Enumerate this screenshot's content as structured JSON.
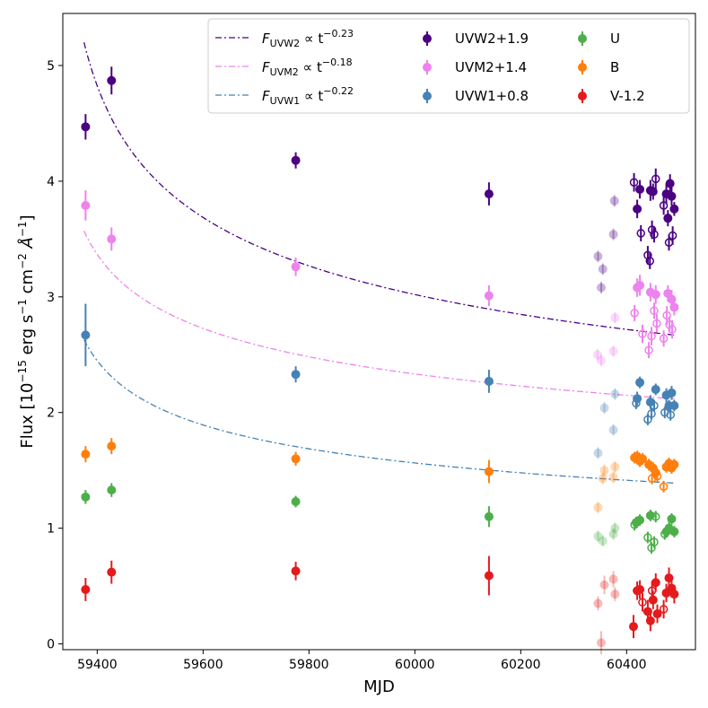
{
  "chart_data": {
    "type": "scatter",
    "xlabel": "MJD",
    "ylabel_main": "Flux [10",
    "ylabel_exp1": "−15",
    "ylabel_rest": " erg s",
    "ylabel_exp2": "−1",
    "ylabel_cm": " cm",
    "ylabel_exp3": "−2",
    "ylabel_ang": " Å",
    "ylabel_exp4": "−1",
    "ylabel_close": "]",
    "xlim": [
      59335,
      60530
    ],
    "ylim": [
      -0.05,
      5.45
    ],
    "xticks": [
      59400,
      59600,
      59800,
      60000,
      60200,
      60400
    ],
    "yticks": [
      0,
      1,
      2,
      3,
      4,
      5
    ],
    "grid": false,
    "legend_position": "top-right",
    "fits": [
      {
        "name": "F_UVW2",
        "sub": "UVW2",
        "exp": "−0.23",
        "label_prefix": "F",
        "propto": " ∝ t",
        "color": "#4b0082",
        "amp": 5.2,
        "index": 0.23,
        "x_start": 59375,
        "x_end": 60490
      },
      {
        "name": "F_UVM2",
        "sub": "UVM2",
        "exp": "−0.18",
        "label_prefix": "F",
        "propto": " ∝ t",
        "color": "#ee82ee",
        "amp": 3.57,
        "index": 0.18,
        "x_start": 59375,
        "x_end": 60490
      },
      {
        "name": "F_UVW1",
        "sub": "UVW1",
        "exp": "−0.22",
        "label_prefix": "F",
        "propto": " ∝ t",
        "color": "#4682b4",
        "amp": 2.63,
        "index": 0.22,
        "x_start": 59375,
        "x_end": 60490
      }
    ],
    "fit_t0": 59310,
    "series": [
      {
        "name": "UVW2+1.9",
        "color": "#4b0082",
        "points": [
          {
            "x": 59378,
            "y": 4.47,
            "err": 0.11,
            "f": 1
          },
          {
            "x": 59427,
            "y": 4.87,
            "err": 0.12,
            "f": 1
          },
          {
            "x": 59775,
            "y": 4.18,
            "err": 0.07,
            "f": 1
          },
          {
            "x": 60140,
            "y": 3.89,
            "err": 0.1,
            "f": 1
          },
          {
            "x": 60420,
            "y": 3.76,
            "err": 0.08,
            "f": 1
          },
          {
            "x": 60425,
            "y": 3.93,
            "err": 0.08,
            "f": 1
          },
          {
            "x": 60445,
            "y": 3.92,
            "err": 0.09,
            "f": 1
          },
          {
            "x": 60450,
            "y": 3.91,
            "err": 0.07,
            "f": 1
          },
          {
            "x": 60475,
            "y": 3.89,
            "err": 0.09,
            "f": 1
          },
          {
            "x": 60478,
            "y": 3.68,
            "err": 0.07,
            "f": 1
          },
          {
            "x": 60482,
            "y": 3.98,
            "err": 0.08,
            "f": 1
          },
          {
            "x": 60485,
            "y": 3.87,
            "err": 0.08,
            "f": 1
          },
          {
            "x": 60490,
            "y": 3.76,
            "err": 0.06,
            "f": 1
          },
          {
            "x": 60414,
            "y": 3.99,
            "err": 0.08,
            "f": 0
          },
          {
            "x": 60427,
            "y": 3.55,
            "err": 0.07,
            "f": 0
          },
          {
            "x": 60440,
            "y": 3.36,
            "err": 0.08,
            "f": 0
          },
          {
            "x": 60444,
            "y": 3.31,
            "err": 0.07,
            "f": 0
          },
          {
            "x": 60448,
            "y": 3.58,
            "err": 0.08,
            "f": 0
          },
          {
            "x": 60452,
            "y": 3.54,
            "err": 0.07,
            "f": 0
          },
          {
            "x": 60455,
            "y": 4.02,
            "err": 0.09,
            "f": 0
          },
          {
            "x": 60470,
            "y": 3.79,
            "err": 0.08,
            "f": 0
          },
          {
            "x": 60480,
            "y": 3.47,
            "err": 0.07,
            "f": 0
          },
          {
            "x": 60487,
            "y": 3.53,
            "err": 0.08,
            "f": 0
          },
          {
            "x": 60375,
            "y": 3.54,
            "err": 0.05,
            "f": 2
          },
          {
            "x": 60377,
            "y": 3.83,
            "err": 0.05,
            "f": 2
          },
          {
            "x": 60346,
            "y": 3.35,
            "err": 0.05,
            "f": 2
          },
          {
            "x": 60355,
            "y": 3.24,
            "err": 0.05,
            "f": 2
          },
          {
            "x": 60352,
            "y": 3.08,
            "err": 0.05,
            "f": 2
          }
        ]
      },
      {
        "name": "UVM2+1.4",
        "color": "#ee82ee",
        "points": [
          {
            "x": 59378,
            "y": 3.79,
            "err": 0.13,
            "f": 1
          },
          {
            "x": 59427,
            "y": 3.5,
            "err": 0.1,
            "f": 1
          },
          {
            "x": 59775,
            "y": 3.26,
            "err": 0.08,
            "f": 1
          },
          {
            "x": 60140,
            "y": 3.01,
            "err": 0.09,
            "f": 1
          },
          {
            "x": 60420,
            "y": 3.08,
            "err": 0.08,
            "f": 1
          },
          {
            "x": 60425,
            "y": 3.1,
            "err": 0.09,
            "f": 1
          },
          {
            "x": 60445,
            "y": 3.04,
            "err": 0.08,
            "f": 1
          },
          {
            "x": 60455,
            "y": 3.02,
            "err": 0.08,
            "f": 1
          },
          {
            "x": 60478,
            "y": 3.03,
            "err": 0.07,
            "f": 1
          },
          {
            "x": 60485,
            "y": 2.98,
            "err": 0.08,
            "f": 1
          },
          {
            "x": 60490,
            "y": 2.91,
            "err": 0.07,
            "f": 1
          },
          {
            "x": 60415,
            "y": 2.86,
            "err": 0.07,
            "f": 0
          },
          {
            "x": 60430,
            "y": 2.68,
            "err": 0.08,
            "f": 0
          },
          {
            "x": 60442,
            "y": 2.54,
            "err": 0.07,
            "f": 0
          },
          {
            "x": 60447,
            "y": 2.66,
            "err": 0.08,
            "f": 0
          },
          {
            "x": 60452,
            "y": 2.88,
            "err": 0.07,
            "f": 0
          },
          {
            "x": 60457,
            "y": 2.77,
            "err": 0.08,
            "f": 0
          },
          {
            "x": 60470,
            "y": 2.64,
            "err": 0.07,
            "f": 0
          },
          {
            "x": 60476,
            "y": 2.84,
            "err": 0.08,
            "f": 0
          },
          {
            "x": 60481,
            "y": 2.76,
            "err": 0.07,
            "f": 0
          },
          {
            "x": 60486,
            "y": 2.72,
            "err": 0.08,
            "f": 0
          },
          {
            "x": 60345,
            "y": 2.5,
            "err": 0.05,
            "f": 2
          },
          {
            "x": 60352,
            "y": 2.45,
            "err": 0.05,
            "f": 2
          },
          {
            "x": 60375,
            "y": 2.53,
            "err": 0.05,
            "f": 2
          },
          {
            "x": 60378,
            "y": 2.82,
            "err": 0.05,
            "f": 2
          }
        ]
      },
      {
        "name": "UVW1+0.8",
        "color": "#4682b4",
        "points": [
          {
            "x": 59378,
            "y": 2.67,
            "err": 0.27,
            "f": 1
          },
          {
            "x": 59775,
            "y": 2.33,
            "err": 0.07,
            "f": 1
          },
          {
            "x": 60140,
            "y": 2.27,
            "err": 0.1,
            "f": 1
          },
          {
            "x": 60420,
            "y": 2.12,
            "err": 0.06,
            "f": 1
          },
          {
            "x": 60425,
            "y": 2.26,
            "err": 0.05,
            "f": 1
          },
          {
            "x": 60445,
            "y": 2.09,
            "err": 0.06,
            "f": 1
          },
          {
            "x": 60455,
            "y": 2.2,
            "err": 0.05,
            "f": 1
          },
          {
            "x": 60475,
            "y": 2.15,
            "err": 0.06,
            "f": 1
          },
          {
            "x": 60480,
            "y": 2.06,
            "err": 0.05,
            "f": 1
          },
          {
            "x": 60485,
            "y": 2.17,
            "err": 0.06,
            "f": 1
          },
          {
            "x": 60490,
            "y": 2.06,
            "err": 0.05,
            "f": 1
          },
          {
            "x": 60418,
            "y": 2.08,
            "err": 0.05,
            "f": 0
          },
          {
            "x": 60440,
            "y": 1.94,
            "err": 0.05,
            "f": 0
          },
          {
            "x": 60447,
            "y": 1.99,
            "err": 0.05,
            "f": 0
          },
          {
            "x": 60452,
            "y": 2.06,
            "err": 0.05,
            "f": 0
          },
          {
            "x": 60472,
            "y": 2.0,
            "err": 0.05,
            "f": 0
          },
          {
            "x": 60483,
            "y": 1.98,
            "err": 0.05,
            "f": 0
          },
          {
            "x": 60346,
            "y": 1.65,
            "err": 0.05,
            "f": 2
          },
          {
            "x": 60358,
            "y": 2.04,
            "err": 0.05,
            "f": 2
          },
          {
            "x": 60375,
            "y": 1.85,
            "err": 0.05,
            "f": 2
          },
          {
            "x": 60378,
            "y": 2.16,
            "err": 0.05,
            "f": 2
          }
        ]
      },
      {
        "name": "B",
        "color": "#ff7f0e",
        "points": [
          {
            "x": 59378,
            "y": 1.64,
            "err": 0.07,
            "f": 1
          },
          {
            "x": 59427,
            "y": 1.71,
            "err": 0.07,
            "f": 1
          },
          {
            "x": 59775,
            "y": 1.6,
            "err": 0.06,
            "f": 1
          },
          {
            "x": 60140,
            "y": 1.49,
            "err": 0.1,
            "f": 1
          },
          {
            "x": 60415,
            "y": 1.61,
            "err": 0.05,
            "f": 1
          },
          {
            "x": 60420,
            "y": 1.62,
            "err": 0.05,
            "f": 1
          },
          {
            "x": 60425,
            "y": 1.58,
            "err": 0.05,
            "f": 1
          },
          {
            "x": 60430,
            "y": 1.6,
            "err": 0.05,
            "f": 1
          },
          {
            "x": 60442,
            "y": 1.55,
            "err": 0.05,
            "f": 1
          },
          {
            "x": 60450,
            "y": 1.52,
            "err": 0.05,
            "f": 1
          },
          {
            "x": 60455,
            "y": 1.48,
            "err": 0.05,
            "f": 1
          },
          {
            "x": 60475,
            "y": 1.53,
            "err": 0.05,
            "f": 1
          },
          {
            "x": 60480,
            "y": 1.56,
            "err": 0.05,
            "f": 1
          },
          {
            "x": 60485,
            "y": 1.52,
            "err": 0.05,
            "f": 1
          },
          {
            "x": 60490,
            "y": 1.55,
            "err": 0.05,
            "f": 1
          },
          {
            "x": 60448,
            "y": 1.43,
            "err": 0.05,
            "f": 0
          },
          {
            "x": 60458,
            "y": 1.45,
            "err": 0.05,
            "f": 0
          },
          {
            "x": 60470,
            "y": 1.36,
            "err": 0.05,
            "f": 0
          },
          {
            "x": 60346,
            "y": 1.18,
            "err": 0.05,
            "f": 2
          },
          {
            "x": 60355,
            "y": 1.43,
            "err": 0.05,
            "f": 2
          },
          {
            "x": 60358,
            "y": 1.5,
            "err": 0.05,
            "f": 2
          },
          {
            "x": 60375,
            "y": 1.44,
            "err": 0.05,
            "f": 2
          },
          {
            "x": 60378,
            "y": 1.53,
            "err": 0.05,
            "f": 2
          }
        ]
      },
      {
        "name": "U",
        "color": "#4daf4a",
        "points": [
          {
            "x": 59378,
            "y": 1.27,
            "err": 0.06,
            "f": 1
          },
          {
            "x": 59427,
            "y": 1.33,
            "err": 0.06,
            "f": 1
          },
          {
            "x": 59775,
            "y": 1.23,
            "err": 0.05,
            "f": 1
          },
          {
            "x": 60140,
            "y": 1.1,
            "err": 0.09,
            "f": 1
          },
          {
            "x": 60418,
            "y": 1.05,
            "err": 0.05,
            "f": 1
          },
          {
            "x": 60425,
            "y": 1.07,
            "err": 0.05,
            "f": 1
          },
          {
            "x": 60445,
            "y": 1.11,
            "err": 0.05,
            "f": 1
          },
          {
            "x": 60475,
            "y": 0.97,
            "err": 0.05,
            "f": 1
          },
          {
            "x": 60480,
            "y": 1.0,
            "err": 0.05,
            "f": 1
          },
          {
            "x": 60485,
            "y": 1.08,
            "err": 0.05,
            "f": 1
          },
          {
            "x": 60490,
            "y": 0.97,
            "err": 0.05,
            "f": 1
          },
          {
            "x": 60415,
            "y": 1.03,
            "err": 0.05,
            "f": 0
          },
          {
            "x": 60440,
            "y": 0.92,
            "err": 0.05,
            "f": 0
          },
          {
            "x": 60447,
            "y": 0.83,
            "err": 0.05,
            "f": 0
          },
          {
            "x": 60452,
            "y": 0.88,
            "err": 0.05,
            "f": 0
          },
          {
            "x": 60455,
            "y": 1.1,
            "err": 0.05,
            "f": 0
          },
          {
            "x": 60472,
            "y": 0.95,
            "err": 0.05,
            "f": 0
          },
          {
            "x": 60346,
            "y": 0.93,
            "err": 0.05,
            "f": 2
          },
          {
            "x": 60355,
            "y": 0.89,
            "err": 0.05,
            "f": 2
          },
          {
            "x": 60375,
            "y": 0.95,
            "err": 0.05,
            "f": 2
          },
          {
            "x": 60378,
            "y": 1.0,
            "err": 0.05,
            "f": 2
          }
        ]
      },
      {
        "name": "V-1.2",
        "color": "#e41a1c",
        "points": [
          {
            "x": 59378,
            "y": 0.47,
            "err": 0.1,
            "f": 1
          },
          {
            "x": 59427,
            "y": 0.62,
            "err": 0.1,
            "f": 1
          },
          {
            "x": 59775,
            "y": 0.63,
            "err": 0.08,
            "f": 1
          },
          {
            "x": 60140,
            "y": 0.59,
            "err": 0.17,
            "f": 1
          },
          {
            "x": 60413,
            "y": 0.15,
            "err": 0.1,
            "f": 1
          },
          {
            "x": 60420,
            "y": 0.46,
            "err": 0.08,
            "f": 1
          },
          {
            "x": 60425,
            "y": 0.47,
            "err": 0.08,
            "f": 1
          },
          {
            "x": 60440,
            "y": 0.28,
            "err": 0.1,
            "f": 1
          },
          {
            "x": 60445,
            "y": 0.2,
            "err": 0.09,
            "f": 1
          },
          {
            "x": 60450,
            "y": 0.38,
            "err": 0.08,
            "f": 1
          },
          {
            "x": 60455,
            "y": 0.53,
            "err": 0.08,
            "f": 1
          },
          {
            "x": 60458,
            "y": 0.26,
            "err": 0.08,
            "f": 1
          },
          {
            "x": 60475,
            "y": 0.44,
            "err": 0.08,
            "f": 1
          },
          {
            "x": 60480,
            "y": 0.57,
            "err": 0.09,
            "f": 1
          },
          {
            "x": 60485,
            "y": 0.48,
            "err": 0.08,
            "f": 1
          },
          {
            "x": 60490,
            "y": 0.43,
            "err": 0.08,
            "f": 1
          },
          {
            "x": 60430,
            "y": 0.36,
            "err": 0.08,
            "f": 0
          },
          {
            "x": 60448,
            "y": 0.46,
            "err": 0.08,
            "f": 0
          },
          {
            "x": 60470,
            "y": 0.3,
            "err": 0.08,
            "f": 0
          },
          {
            "x": 60346,
            "y": 0.35,
            "err": 0.06,
            "f": 2
          },
          {
            "x": 60352,
            "y": 0.01,
            "err": 0.1,
            "f": 2
          },
          {
            "x": 60358,
            "y": 0.51,
            "err": 0.08,
            "f": 2
          },
          {
            "x": 60375,
            "y": 0.56,
            "err": 0.07,
            "f": 2
          },
          {
            "x": 60378,
            "y": 0.43,
            "err": 0.06,
            "f": 2
          }
        ]
      }
    ]
  }
}
